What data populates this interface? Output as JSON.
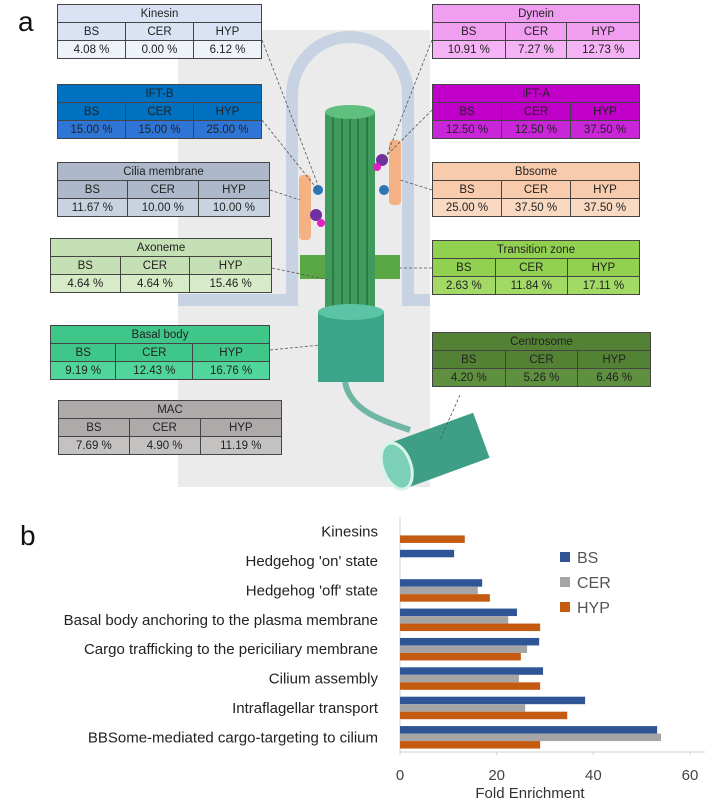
{
  "panel_a": {
    "label": "a",
    "tables": [
      {
        "title": "Kinesin",
        "headers": [
          "BS",
          "CER",
          "HYP"
        ],
        "values": [
          "4.08 %",
          "0.00 %",
          "6.12 %"
        ],
        "title_color": "#dae3f3",
        "cell_color": "#eef3fa"
      },
      {
        "title": "IFT-B",
        "headers": [
          "BS",
          "CER",
          "HYP"
        ],
        "values": [
          "15.00 %",
          "15.00 %",
          "25.00 %"
        ],
        "title_color": "#0070c0",
        "cell_color": "#2e75d6"
      },
      {
        "title": "Cilia membrane",
        "headers": [
          "BS",
          "CER",
          "HYP"
        ],
        "values": [
          "11.67 %",
          "10.00 %",
          "10.00 %"
        ],
        "title_color": "#adb9ca",
        "cell_color": "#c9d2df"
      },
      {
        "title": "Axoneme",
        "headers": [
          "BS",
          "CER",
          "HYP"
        ],
        "values": [
          "4.64 %",
          "4.64 %",
          "15.46 %"
        ],
        "title_color": "#c5e0b4",
        "cell_color": "#d7ebc9"
      },
      {
        "title": "Basal body",
        "headers": [
          "BS",
          "CER",
          "HYP"
        ],
        "values": [
          "9.19 %",
          "12.43 %",
          "16.76 %"
        ],
        "title_color": "#3fc78a",
        "cell_color": "#50d59a"
      },
      {
        "title": "MAC",
        "headers": [
          "BS",
          "CER",
          "HYP"
        ],
        "values": [
          "7.69 %",
          "4.90 %",
          "11.19 %"
        ],
        "title_color": "#aeaaaa",
        "cell_color": "#c4c1c1"
      },
      {
        "title": "Dynein",
        "headers": [
          "BS",
          "CER",
          "HYP"
        ],
        "values": [
          "10.91 %",
          "7.27 %",
          "12.73 %"
        ],
        "title_color": "#f09ef0",
        "cell_color": "#f5b3f5"
      },
      {
        "title": "IFT-A",
        "headers": [
          "BS",
          "CER",
          "HYP"
        ],
        "values": [
          "12.50 %",
          "12.50 %",
          "37.50 %"
        ],
        "title_color": "#c000c8",
        "cell_color": "#c826d8"
      },
      {
        "title": "Bbsome",
        "headers": [
          "BS",
          "CER",
          "HYP"
        ],
        "values": [
          "25.00 %",
          "37.50 %",
          "37.50 %"
        ],
        "title_color": "#f8cbad",
        "cell_color": "#fad9c2"
      },
      {
        "title": "Transition zone",
        "headers": [
          "BS",
          "CER",
          "HYP"
        ],
        "values": [
          "2.63 %",
          "11.84 %",
          "17.11 %"
        ],
        "title_color": "#92d050",
        "cell_color": "#a3da66"
      },
      {
        "title": "Centrosome",
        "headers": [
          "BS",
          "CER",
          "HYP"
        ],
        "values": [
          "4.20 %",
          "5.26 %",
          "6.46 %"
        ],
        "title_color": "#548235",
        "cell_color": "#5f9040"
      }
    ]
  },
  "chart_data": {
    "type": "hbar",
    "label": "b",
    "categories": [
      "Kinesins",
      "Hedgehog 'on' state",
      "Hedgehog 'off' state",
      "Basal body anchoring to the plasma membrane",
      "Cargo trafficking to the periciliary membrane",
      "Cilium assembly",
      "Intraflagellar transport",
      "BBSome-mediated cargo-targeting to cilium"
    ],
    "series": [
      {
        "name": "BS",
        "color": "#2f5597",
        "values": [
          0,
          11.2,
          17,
          24.2,
          28.8,
          29.6,
          38.3,
          53.2
        ]
      },
      {
        "name": "CER",
        "color": "#a5a5a5",
        "values": [
          0,
          0,
          16.1,
          22.4,
          26.3,
          24.6,
          25.9,
          54
        ]
      },
      {
        "name": "HYP",
        "color": "#c55a11",
        "values": [
          13.4,
          0,
          18.6,
          29,
          25,
          29,
          34.6,
          29
        ]
      }
    ],
    "xlabel": "Fold Enrichment",
    "xlim": [
      0,
      60
    ],
    "xticks": [
      0,
      20,
      40,
      60
    ],
    "grid": false,
    "legend": "right"
  }
}
